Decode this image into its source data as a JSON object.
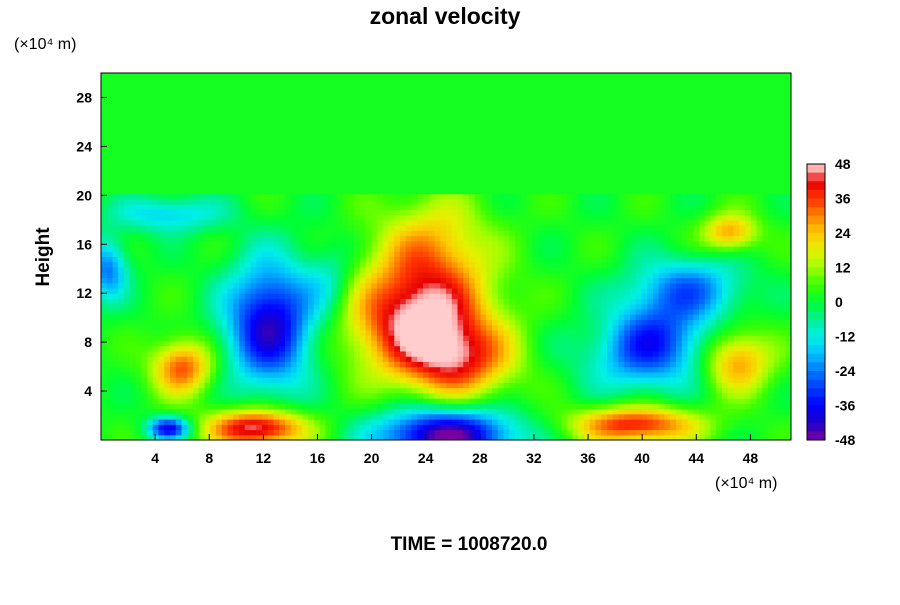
{
  "chart_data": {
    "type": "heatmap",
    "title": "zonal velocity",
    "ylabel": "Height",
    "y_unit": "(×10⁴ m)",
    "x_unit": "(×10⁴ m)",
    "xlim": [
      0,
      51
    ],
    "ylim": [
      0,
      30
    ],
    "x_ticks": [
      4,
      8,
      12,
      16,
      20,
      24,
      28,
      32,
      36,
      40,
      44,
      48
    ],
    "y_ticks": [
      4,
      8,
      12,
      16,
      20,
      24,
      28
    ],
    "colorbar": {
      "min": -48,
      "max": 48,
      "ticks": [
        48,
        36,
        24,
        12,
        0,
        -12,
        -24,
        -36,
        -48
      ]
    },
    "background_value": 2,
    "stratosphere_base": 20,
    "features": [
      {
        "kind": "jet",
        "x": 23.5,
        "y": 10,
        "rx": 5.0,
        "ry": 4.5,
        "peak": 48
      },
      {
        "kind": "jet",
        "x": 26.5,
        "y": 6.5,
        "rx": 4.0,
        "ry": 3.0,
        "peak": 30
      },
      {
        "kind": "jet",
        "x": 24.5,
        "y": 16,
        "rx": 4.0,
        "ry": 4.0,
        "peak": 22
      },
      {
        "kind": "jet",
        "x": 6.0,
        "y": 6.0,
        "rx": 2.2,
        "ry": 2.2,
        "peak": 34
      },
      {
        "kind": "jet",
        "x": 11.5,
        "y": 1.0,
        "rx": 3.5,
        "ry": 1.5,
        "peak": 48
      },
      {
        "kind": "jet",
        "x": 39.5,
        "y": 1.3,
        "rx": 4.5,
        "ry": 1.5,
        "peak": 40
      },
      {
        "kind": "jet",
        "x": 47.0,
        "y": 6.5,
        "rx": 2.5,
        "ry": 2.5,
        "peak": 30
      },
      {
        "kind": "jet",
        "x": 46.5,
        "y": 17.0,
        "rx": 2.0,
        "ry": 1.5,
        "peak": 28
      },
      {
        "kind": "jet",
        "x": 37.5,
        "y": 9.0,
        "rx": 3.0,
        "ry": 3.0,
        "peak": 14
      },
      {
        "kind": "trough",
        "x": 12.5,
        "y": 9.5,
        "rx": 3.2,
        "ry": 5.0,
        "peak": -42
      },
      {
        "kind": "trough",
        "x": 25.5,
        "y": 0.4,
        "rx": 5.0,
        "ry": 2.2,
        "peak": -48
      },
      {
        "kind": "trough",
        "x": 40.0,
        "y": 8.0,
        "rx": 4.5,
        "ry": 3.5,
        "peak": -38
      },
      {
        "kind": "trough",
        "x": 43.5,
        "y": 12.5,
        "rx": 4.0,
        "ry": 2.5,
        "peak": -22
      },
      {
        "kind": "trough",
        "x": 5.0,
        "y": 18.5,
        "rx": 4.0,
        "ry": 1.5,
        "peak": -16
      },
      {
        "kind": "trough",
        "x": 0.5,
        "y": 14.0,
        "rx": 1.5,
        "ry": 2.5,
        "peak": -24
      },
      {
        "kind": "trough",
        "x": 5.0,
        "y": 1.0,
        "rx": 1.5,
        "ry": 0.9,
        "peak": -38
      },
      {
        "kind": "trough",
        "x": 17.0,
        "y": 13.0,
        "rx": 2.0,
        "ry": 3.0,
        "peak": -10
      }
    ]
  },
  "footer": {
    "time_label": "TIME = 1008720.0"
  }
}
